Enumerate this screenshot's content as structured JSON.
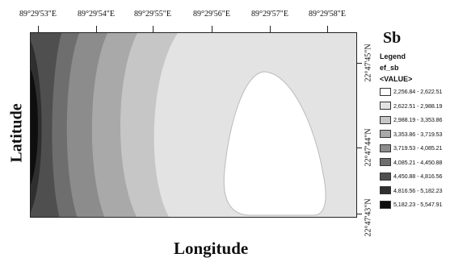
{
  "map": {
    "x_axis_label": "Longitude",
    "y_axis_label": "Latitude",
    "longitude_ticks": [
      "89°29'53\"E",
      "89°29'54\"E",
      "89°29'55\"E",
      "89°29'56\"E",
      "89°29'57\"E",
      "89°29'58\"E"
    ],
    "latitude_ticks": [
      "22°47'45\"N",
      "22°47'44\"N",
      "22°47'43\"N"
    ]
  },
  "legend": {
    "title": "Sb",
    "heading": "Legend",
    "layer": "ef_sb",
    "field": "<VALUE>",
    "classes": [
      {
        "range": "2,256.84 - 2,622.51",
        "color": "#ffffff"
      },
      {
        "range": "2,622.51 - 2,988.19",
        "color": "#e3e3e3"
      },
      {
        "range": "2,988.19 - 3,353.86",
        "color": "#c6c6c6"
      },
      {
        "range": "3,353.86 - 3,719.53",
        "color": "#a9a9a9"
      },
      {
        "range": "3,719.53 - 4,085.21",
        "color": "#8c8c8c"
      },
      {
        "range": "4,085.21 - 4,450.88",
        "color": "#6e6e6e"
      },
      {
        "range": "4,450.88 - 4,816.56",
        "color": "#4f4f4f"
      },
      {
        "range": "4,816.56 - 5,182.23",
        "color": "#2f2f2f"
      },
      {
        "range": "5,182.23 - 5,547.91",
        "color": "#0e0e0e"
      }
    ]
  }
}
